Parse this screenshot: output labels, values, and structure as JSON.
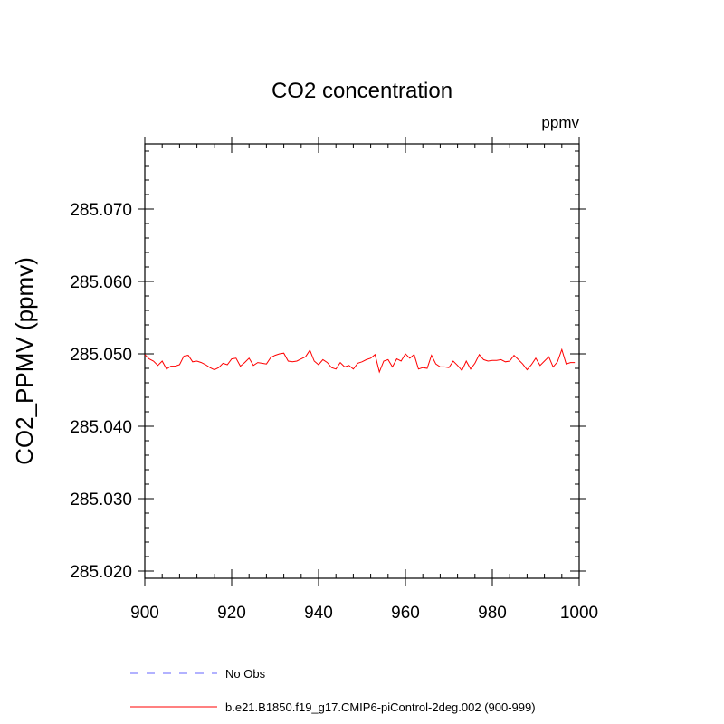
{
  "chart_data": {
    "type": "line",
    "title": "CO2 concentration",
    "units": "ppmv",
    "ylabel": "CO2_PPMV  (ppmv)",
    "xlabel": "",
    "xlim": [
      900,
      1000
    ],
    "ylim": [
      285.019,
      285.079
    ],
    "x_ticks": [
      900,
      920,
      940,
      960,
      980,
      1000
    ],
    "x_tick_labels": [
      "900",
      "920",
      "940",
      "960",
      "980",
      "1000"
    ],
    "y_ticks": [
      285.02,
      285.03,
      285.04,
      285.05,
      285.06,
      285.07
    ],
    "y_tick_labels": [
      "285.020",
      "285.030",
      "285.040",
      "285.050",
      "285.060",
      "285.070"
    ],
    "grid": false,
    "legend_position": "bottom-left below plot",
    "series": [
      {
        "name": "No Obs",
        "color": "#6666ff",
        "dash": "dashed",
        "x": [],
        "y": []
      },
      {
        "name": "b.e21.B1850.f19_g17.CMIP6-piControl-2deg.002 (900-999)",
        "color": "#ff0000",
        "dash": "solid",
        "x": [
          900,
          901,
          902,
          903,
          904,
          905,
          906,
          907,
          908,
          909,
          910,
          911,
          912,
          913,
          914,
          915,
          916,
          917,
          918,
          919,
          920,
          921,
          922,
          923,
          924,
          925,
          926,
          927,
          928,
          929,
          930,
          931,
          932,
          933,
          934,
          935,
          936,
          937,
          938,
          939,
          940,
          941,
          942,
          943,
          944,
          945,
          946,
          947,
          948,
          949,
          950,
          951,
          952,
          953,
          954,
          955,
          956,
          957,
          958,
          959,
          960,
          961,
          962,
          963,
          964,
          965,
          966,
          967,
          968,
          969,
          970,
          971,
          972,
          973,
          974,
          975,
          976,
          977,
          978,
          979,
          980,
          981,
          982,
          983,
          984,
          985,
          986,
          987,
          988,
          989,
          990,
          991,
          992,
          993,
          994,
          995,
          996,
          997,
          998,
          999
        ],
        "y": [
          285.0499,
          285.0493,
          285.049,
          285.0484,
          285.049,
          285.0479,
          285.0483,
          285.0483,
          285.0485,
          285.0497,
          285.0498,
          285.0489,
          285.049,
          285.0488,
          285.0485,
          285.0481,
          285.0478,
          285.0481,
          285.0487,
          285.0485,
          285.0493,
          285.0494,
          285.0483,
          285.0488,
          285.0494,
          285.0484,
          285.0488,
          285.0487,
          285.0486,
          285.0495,
          285.0498,
          285.05,
          285.0501,
          285.049,
          285.0489,
          285.049,
          285.0493,
          285.0496,
          285.0505,
          285.049,
          285.0485,
          285.0492,
          285.0488,
          285.0481,
          285.0479,
          285.0488,
          285.0482,
          285.0484,
          285.0479,
          285.0487,
          285.0489,
          285.0492,
          285.0494,
          285.0499,
          285.0475,
          285.049,
          285.0492,
          285.0482,
          285.0493,
          285.049,
          285.05,
          285.0494,
          285.0499,
          285.0479,
          285.0481,
          285.048,
          285.0498,
          285.0486,
          285.0482,
          285.0482,
          285.0481,
          285.049,
          285.0484,
          285.0477,
          285.049,
          285.0479,
          285.0487,
          285.0499,
          285.0492,
          285.049,
          285.0491,
          285.0491,
          285.0492,
          285.0489,
          285.049,
          285.0498,
          285.0492,
          285.0486,
          285.0478,
          285.0485,
          285.0494,
          285.0484,
          285.049,
          285.0496,
          285.0482,
          285.0489,
          285.0506,
          285.0486,
          285.0488,
          285.0488
        ]
      }
    ]
  }
}
